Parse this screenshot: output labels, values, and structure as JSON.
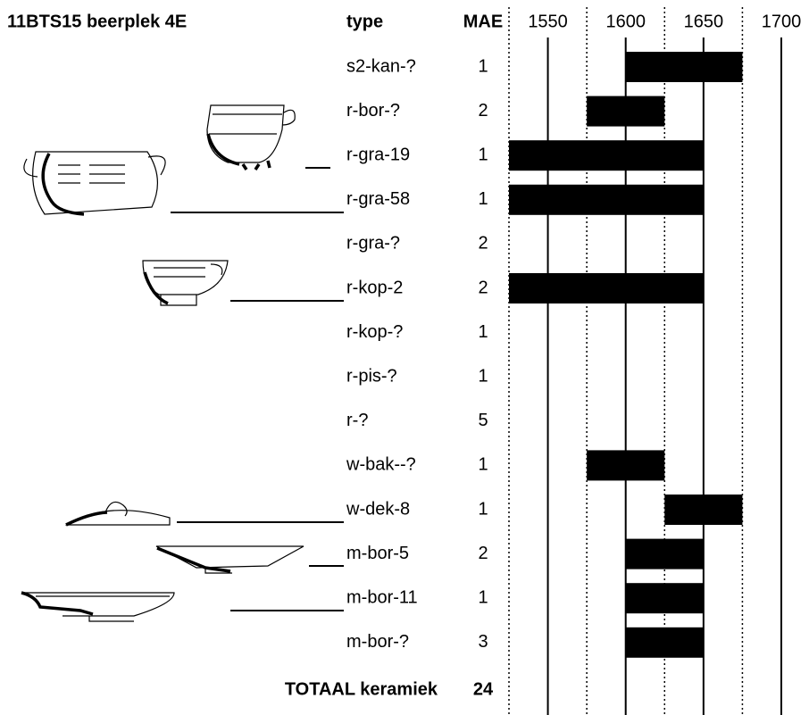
{
  "chart_data": {
    "type": "gantt",
    "title": "11BTS15 beerplek 4E",
    "category_header": "type",
    "count_header": "MAE",
    "categories": [
      "s2-kan-?",
      "r-bor-?",
      "r-gra-19",
      "r-gra-58",
      "r-gra-?",
      "r-kop-2",
      "r-kop-?",
      "r-pis-?",
      "r-?",
      "w-bak--?",
      "w-dek-8",
      "m-bor-5",
      "m-bor-11",
      "m-bor-?"
    ],
    "counts": [
      1,
      2,
      1,
      1,
      2,
      2,
      1,
      1,
      5,
      1,
      1,
      2,
      1,
      3
    ],
    "start": [
      1600,
      1575,
      1525,
      1525,
      null,
      1525,
      null,
      null,
      null,
      1575,
      1625,
      1600,
      1600,
      1600
    ],
    "end": [
      1675,
      1625,
      1650,
      1650,
      null,
      1650,
      null,
      null,
      null,
      1625,
      1675,
      1650,
      1650,
      1650
    ],
    "color": "#000000",
    "total_label": "TOTAAL keramiek",
    "total": 24,
    "xlim": [
      1525,
      1700
    ],
    "xticks": [
      1550,
      1600,
      1650,
      1700
    ],
    "minor_xticks": [
      1525,
      1575,
      1625,
      1675
    ]
  }
}
